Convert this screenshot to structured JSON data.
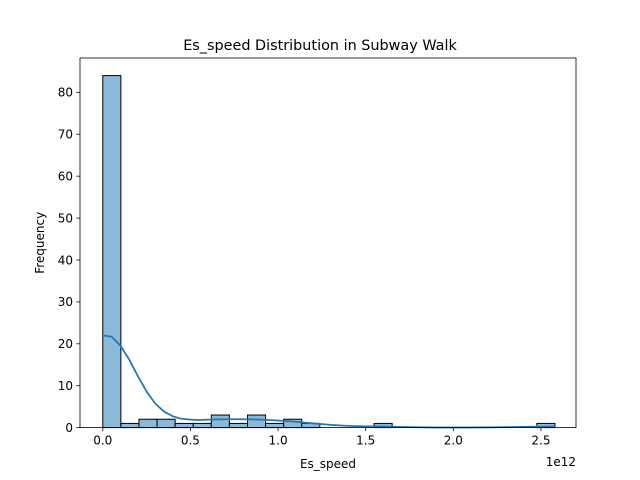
{
  "chart_data": {
    "type": "bar",
    "title": "Es_speed Distribution in Subway Walk",
    "xlabel": "Es_speed",
    "ylabel": "Frequency",
    "x_offset_label": "1e12",
    "xlim": [
      -0.13,
      2.7
    ],
    "ylim": [
      0,
      88.2
    ],
    "x_ticks": [
      0.0,
      0.5,
      1.0,
      1.5,
      2.0,
      2.5
    ],
    "x_tick_labels": [
      "0.0",
      "0.5",
      "1.0",
      "1.5",
      "2.0",
      "2.5"
    ],
    "y_ticks": [
      0,
      10,
      20,
      30,
      40,
      50,
      60,
      70,
      80
    ],
    "y_tick_labels": [
      "0",
      "10",
      "20",
      "30",
      "40",
      "50",
      "60",
      "70",
      "80"
    ],
    "bin_start": 0.0,
    "bin_width": 0.1032,
    "counts": [
      84,
      1,
      2,
      2,
      1,
      1,
      3,
      1,
      3,
      1,
      2,
      1,
      0,
      0,
      0,
      1,
      0,
      0,
      0,
      0,
      0,
      0,
      0,
      0,
      1
    ],
    "kde": {
      "x": [
        0.0,
        0.05,
        0.1,
        0.15,
        0.2,
        0.25,
        0.3,
        0.35,
        0.4,
        0.45,
        0.5,
        0.55,
        0.6,
        0.65,
        0.7,
        0.75,
        0.8,
        0.85,
        0.9,
        0.95,
        1.0,
        1.05,
        1.1,
        1.15,
        1.2,
        1.3,
        1.4,
        1.5,
        1.6,
        1.7,
        1.8,
        1.9,
        2.0,
        2.1,
        2.2,
        2.3,
        2.4,
        2.5,
        2.58
      ],
      "y": [
        22.0,
        21.7,
        19.6,
        16.3,
        12.3,
        8.6,
        5.7,
        3.8,
        2.7,
        2.1,
        1.9,
        1.8,
        1.9,
        1.95,
        2.0,
        2.0,
        2.0,
        1.95,
        1.9,
        1.8,
        1.7,
        1.55,
        1.4,
        1.2,
        1.0,
        0.65,
        0.4,
        0.3,
        0.25,
        0.15,
        0.07,
        0.03,
        0.02,
        0.03,
        0.05,
        0.1,
        0.17,
        0.22,
        0.25
      ]
    },
    "colors": {
      "bar_fill": "#8bbad9",
      "bar_edge": "#000000",
      "kde_line": "#1f77b4"
    },
    "grid": false,
    "legend": "none"
  }
}
